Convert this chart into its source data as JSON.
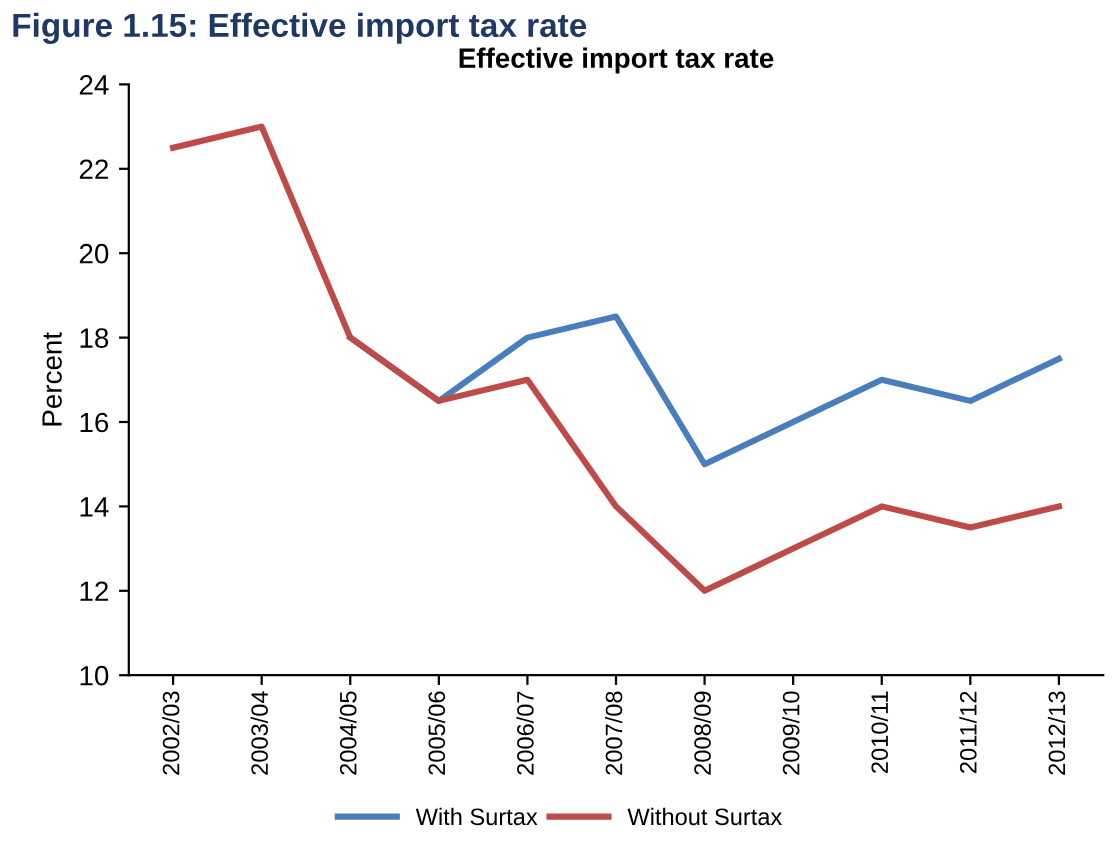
{
  "chart_data": {
    "type": "line",
    "title": "Effective import tax rate",
    "ylabel": "Percent",
    "annotations": [
      "Figure 1.15: Effective import tax rate"
    ],
    "categories": [
      "2002/03",
      "2003/04",
      "2004/05",
      "2005/06",
      "2006/07",
      "2007/08",
      "2008/09",
      "2009/10",
      "2010/11",
      "2011/12",
      "2012/13"
    ],
    "series": [
      {
        "name": "With Surtax",
        "color": "#4a7ebb",
        "values": [
          null,
          null,
          18,
          16.5,
          18,
          18.5,
          15,
          16,
          17,
          16.5,
          17.5
        ]
      },
      {
        "name": "Without Surtax",
        "color": "#be4b48",
        "values": [
          22.5,
          23,
          18,
          16.5,
          17,
          14,
          12,
          13,
          14,
          13.5,
          14
        ]
      }
    ],
    "ylim": [
      10,
      24
    ],
    "yticks": [
      10,
      12,
      14,
      16,
      18,
      20,
      22,
      24
    ],
    "grid": false,
    "legend": "bottom",
    "marker": "none",
    "line_style": "solid"
  }
}
